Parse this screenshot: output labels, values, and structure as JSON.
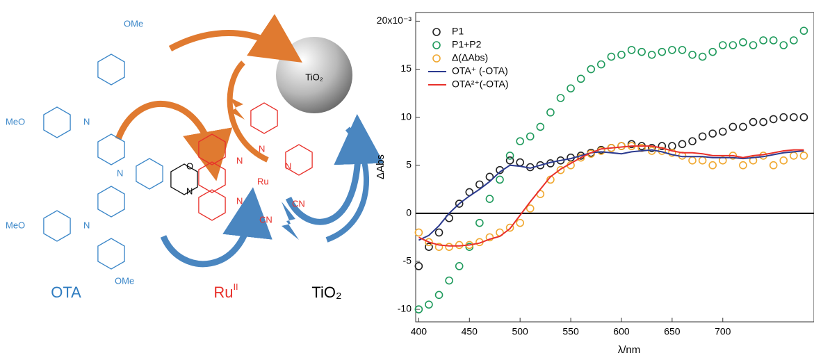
{
  "diagram": {
    "ome_top": "OMe",
    "meo_left_top": "MeO",
    "meo_left_bottom": "MeO",
    "ome_bottom": "OMe",
    "n_labels": [
      "N",
      "N",
      "N",
      "N",
      "N",
      "N",
      "N",
      "N"
    ],
    "oxazole_o": "O",
    "ru": "Ru",
    "cn": [
      "CN",
      "CN"
    ],
    "sphere_label": "TiO₂",
    "ota_label": "OTA",
    "ru_label": {
      "text": "Ru",
      "sup": "II"
    },
    "tio2_label": "TiO₂"
  },
  "chart_data": {
    "type": "scatter",
    "xlabel": "λ/nm",
    "ylabel": "ΔAbs",
    "legend": "upper left",
    "x": [
      400,
      410,
      420,
      430,
      440,
      450,
      460,
      470,
      480,
      490,
      500,
      510,
      520,
      530,
      540,
      550,
      560,
      570,
      580,
      590,
      600,
      610,
      620,
      630,
      640,
      650,
      660,
      670,
      680,
      690,
      700,
      710,
      720,
      730,
      740,
      750,
      760,
      770,
      780
    ],
    "series": [
      {
        "name": "P1",
        "color": "#222222",
        "mode": "markers",
        "values": [
          -5.5,
          -3.5,
          -2,
          -0.5,
          1,
          2.2,
          3,
          3.8,
          4.5,
          5.5,
          5.3,
          4.8,
          5,
          5.2,
          5.5,
          5.8,
          6,
          6.3,
          6.6,
          6.8,
          7,
          7.2,
          7,
          6.8,
          7,
          7,
          7.2,
          7.5,
          8,
          8.3,
          8.5,
          9,
          9,
          9.5,
          9.5,
          9.8,
          10,
          10,
          10
        ]
      },
      {
        "name": "P1+P2",
        "color": "#1f9a5c",
        "mode": "markers",
        "values": [
          -10,
          -9.5,
          -8.5,
          -7,
          -5.5,
          -3.5,
          -1,
          1.5,
          3.5,
          6,
          7.5,
          8,
          9,
          10.5,
          12,
          13,
          14,
          15,
          15.5,
          16.3,
          16.5,
          17,
          16.8,
          16.5,
          16.8,
          17,
          17,
          16.5,
          16.3,
          16.8,
          17.5,
          17.5,
          17.8,
          17.5,
          18,
          18,
          17.5,
          18,
          19
        ]
      },
      {
        "name": "Δ(ΔAbs)",
        "color": "#f0a830",
        "mode": "markers",
        "values": [
          -2,
          -3,
          -3.5,
          -3.5,
          -3.3,
          -3.3,
          -3,
          -2.5,
          -2,
          -1.5,
          -1,
          0.5,
          2,
          3.5,
          4.5,
          5,
          5.8,
          6.2,
          6.5,
          6.8,
          7,
          7,
          6.8,
          6.5,
          6.5,
          6.3,
          6,
          5.5,
          5.5,
          5,
          5.5,
          6,
          5,
          5.5,
          6,
          5,
          5.5,
          6,
          6
        ]
      },
      {
        "name": "OTA⁺ (-OTA)",
        "color": "#2b3a8f",
        "mode": "line",
        "values": [
          -2.8,
          -2.3,
          -1.3,
          0,
          1,
          1.8,
          2.5,
          3.3,
          4.3,
          5,
          4.9,
          4.7,
          5,
          5.3,
          5.5,
          5.7,
          6,
          6.3,
          6.4,
          6.3,
          6.2,
          6.4,
          6.5,
          6.6,
          6.4,
          6.1,
          5.9,
          5.9,
          5.9,
          5.8,
          5.8,
          5.8,
          5.7,
          5.8,
          5.9,
          6.1,
          6.3,
          6.4,
          6.5
        ]
      },
      {
        "name": "OTA²⁺(-OTA)",
        "color": "#e8302a",
        "mode": "line",
        "values": [
          -2.5,
          -3,
          -3.3,
          -3.4,
          -3.4,
          -3.3,
          -3.1,
          -2.7,
          -2.4,
          -1.6,
          -0.2,
          1.2,
          2.5,
          3.8,
          4.6,
          5.2,
          5.8,
          6.3,
          6.7,
          6.8,
          6.9,
          7,
          7,
          7,
          6.8,
          6.5,
          6.3,
          6.3,
          6.2,
          6,
          6,
          6,
          5.8,
          6,
          6.1,
          6.3,
          6.5,
          6.6,
          6.6
        ]
      }
    ],
    "xlim": [
      397,
      790
    ],
    "ylim": [
      -11.3,
      20.9
    ],
    "xticks": [
      400,
      450,
      500,
      550,
      600,
      650,
      700
    ],
    "yticks": [
      -10,
      -5,
      0,
      5,
      10,
      15,
      {
        "value": 20,
        "label": "20x10⁻³"
      }
    ],
    "hlines": [
      0
    ]
  }
}
